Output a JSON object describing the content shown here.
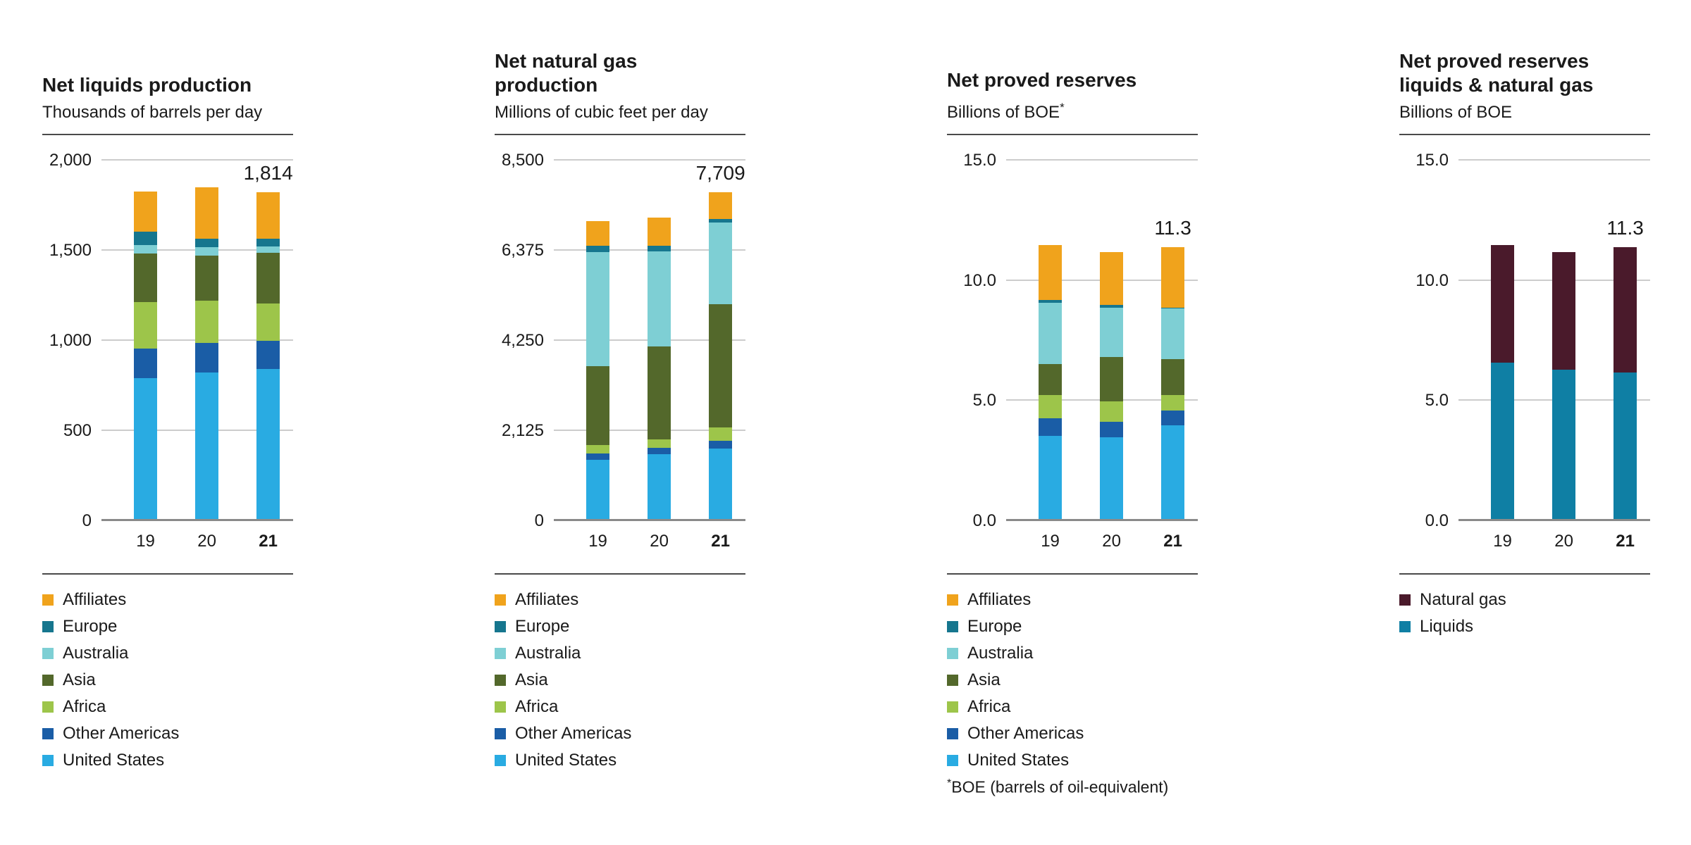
{
  "page": {
    "background": "#ffffff"
  },
  "chart_data": [
    {
      "type": "bar",
      "stacked": true,
      "title_lines": [
        "Net liquids production"
      ],
      "subtitle": "Thousands of barrels per day",
      "subtitle_sup": "",
      "categories": [
        "19",
        "20",
        "21"
      ],
      "bold_category_index": 2,
      "ymax": 2000,
      "yticks": [
        {
          "value": 0,
          "label": "0"
        },
        {
          "value": 500,
          "label": "500"
        },
        {
          "value": 1000,
          "label": "1,000"
        },
        {
          "value": 1500,
          "label": "1,500"
        },
        {
          "value": 2000,
          "label": "2,000"
        }
      ],
      "series": [
        {
          "name": "United States",
          "color": "#29ABE2",
          "values": [
            780,
            812,
            832
          ]
        },
        {
          "name": "Other Americas",
          "color": "#1A5DA6",
          "values": [
            164,
            164,
            158
          ]
        },
        {
          "name": "Africa",
          "color": "#9DC54A",
          "values": [
            261,
            236,
            206
          ]
        },
        {
          "name": "Asia",
          "color": "#53682B",
          "values": [
            267,
            248,
            280
          ]
        },
        {
          "name": "Australia",
          "color": "#7ECFD4",
          "values": [
            48,
            48,
            36
          ]
        },
        {
          "name": "Europe",
          "color": "#16768E",
          "values": [
            73,
            48,
            42
          ]
        },
        {
          "name": "Affiliates",
          "color": "#F0A31C",
          "values": [
            225,
            285,
            260
          ]
        }
      ],
      "legend": [
        "Affiliates",
        "Europe",
        "Australia",
        "Asia",
        "Africa",
        "Other Americas",
        "United States"
      ],
      "annotation": {
        "category_index": 2,
        "label": "1,814"
      }
    },
    {
      "type": "bar",
      "stacked": true,
      "title_lines": [
        "Net natural gas production"
      ],
      "subtitle": "Millions of cubic feet per day",
      "subtitle_sup": "",
      "categories": [
        "19",
        "20",
        "21"
      ],
      "bold_category_index": 2,
      "ymax": 8500,
      "yticks": [
        {
          "value": 0,
          "label": "0"
        },
        {
          "value": 2125,
          "label": "2,125"
        },
        {
          "value": 4250,
          "label": "4,250"
        },
        {
          "value": 6375,
          "label": "6,375"
        },
        {
          "value": 8500,
          "label": "8,500"
        }
      ],
      "series": [
        {
          "name": "United States",
          "color": "#29ABE2",
          "values": [
            1390,
            1520,
            1660
          ]
        },
        {
          "name": "Other Americas",
          "color": "#1A5DA6",
          "values": [
            155,
            155,
            180
          ]
        },
        {
          "name": "Africa",
          "color": "#9DC54A",
          "values": [
            206,
            206,
            312
          ]
        },
        {
          "name": "Asia",
          "color": "#53682B",
          "values": [
            1855,
            2190,
            2910
          ]
        },
        {
          "name": "Australia",
          "color": "#7ECFD4",
          "values": [
            2680,
            2240,
            1930
          ]
        },
        {
          "name": "Europe",
          "color": "#16768E",
          "values": [
            155,
            130,
            77
          ]
        },
        {
          "name": "Affiliates",
          "color": "#F0A31C",
          "values": [
            590,
            670,
            640
          ]
        }
      ],
      "legend": [
        "Affiliates",
        "Europe",
        "Australia",
        "Asia",
        "Africa",
        "Other Americas",
        "United States"
      ],
      "annotation": {
        "category_index": 2,
        "label": "7,709"
      }
    },
    {
      "type": "bar",
      "stacked": true,
      "title_lines": [
        "Net proved reserves"
      ],
      "subtitle": "Billions of BOE",
      "subtitle_sup": "*",
      "categories": [
        "19",
        "20",
        "21"
      ],
      "bold_category_index": 2,
      "ymax": 15,
      "yticks": [
        {
          "value": 0,
          "label": "0.0"
        },
        {
          "value": 5,
          "label": "5.0"
        },
        {
          "value": 10,
          "label": "10.0"
        },
        {
          "value": 15,
          "label": "15.0"
        }
      ],
      "series": [
        {
          "name": "United States",
          "color": "#29ABE2",
          "values": [
            3.45,
            3.4,
            3.9
          ]
        },
        {
          "name": "Other Americas",
          "color": "#1A5DA6",
          "values": [
            0.75,
            0.65,
            0.6
          ]
        },
        {
          "name": "Africa",
          "color": "#9DC54A",
          "values": [
            0.95,
            0.85,
            0.65
          ]
        },
        {
          "name": "Asia",
          "color": "#53682B",
          "values": [
            1.3,
            1.85,
            1.5
          ]
        },
        {
          "name": "Australia",
          "color": "#7ECFD4",
          "values": [
            2.55,
            2.05,
            2.1
          ]
        },
        {
          "name": "Europe",
          "color": "#16768E",
          "values": [
            0.1,
            0.1,
            0.05
          ]
        },
        {
          "name": "Affiliates",
          "color": "#F0A31C",
          "values": [
            2.3,
            2.2,
            2.5
          ]
        }
      ],
      "legend": [
        "Affiliates",
        "Europe",
        "Australia",
        "Asia",
        "Africa",
        "Other Americas",
        "United States"
      ],
      "annotation": {
        "category_index": 2,
        "label": "11.3"
      },
      "footnote_sup": "*",
      "footnote": "BOE (barrels of oil-equivalent)"
    },
    {
      "type": "bar",
      "stacked": true,
      "title_lines": [
        "Net proved reserves",
        "liquids & natural gas"
      ],
      "subtitle": "Billions of BOE",
      "subtitle_sup": "",
      "categories": [
        "19",
        "20",
        "21"
      ],
      "bold_category_index": 2,
      "ymax": 15,
      "yticks": [
        {
          "value": 0,
          "label": "0.0"
        },
        {
          "value": 5,
          "label": "5.0"
        },
        {
          "value": 10,
          "label": "10.0"
        },
        {
          "value": 15,
          "label": "15.0"
        }
      ],
      "series": [
        {
          "name": "Liquids",
          "color": "#0F7FA4",
          "values": [
            6.5,
            6.2,
            6.1
          ]
        },
        {
          "name": "Natural gas",
          "color": "#4A1A2B",
          "values": [
            4.9,
            4.9,
            5.2
          ]
        }
      ],
      "legend": [
        "Natural gas",
        "Liquids"
      ],
      "annotation": {
        "category_index": 2,
        "label": "11.3"
      }
    }
  ]
}
